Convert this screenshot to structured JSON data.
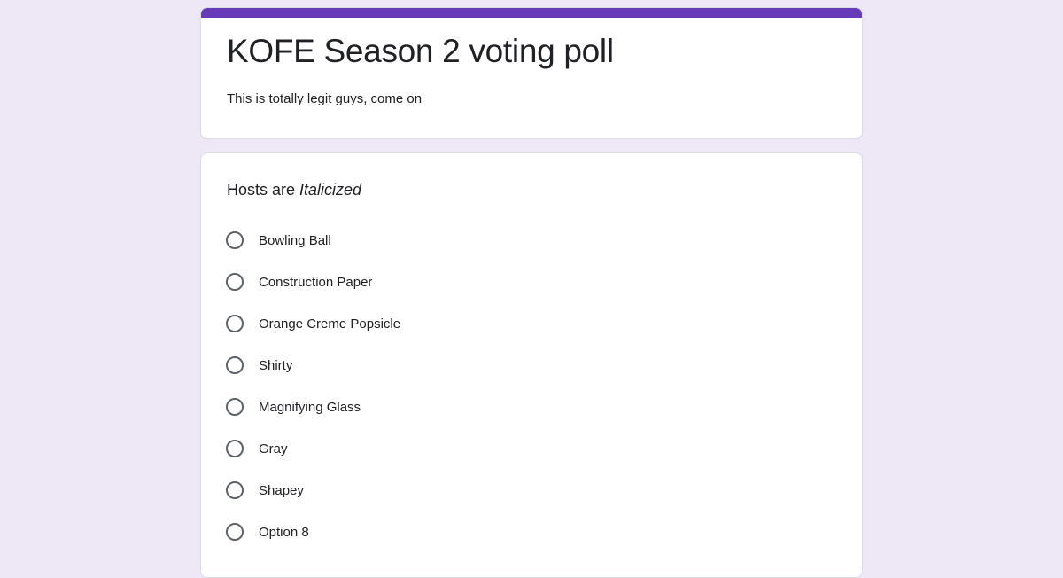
{
  "form": {
    "title": "KOFE Season 2 voting poll",
    "description": "This is totally legit guys, come on",
    "accent_color": "#673ab7",
    "background_color": "#ede7f6"
  },
  "question": {
    "text_prefix": "Hosts are ",
    "text_italic": "Italicized",
    "options": [
      {
        "label": "Bowling Ball",
        "selected": false
      },
      {
        "label": "Construction Paper",
        "selected": false
      },
      {
        "label": "Orange Creme Popsicle",
        "selected": false
      },
      {
        "label": "Shirty",
        "selected": false
      },
      {
        "label": "Magnifying Glass",
        "selected": false
      },
      {
        "label": "Gray",
        "selected": false
      },
      {
        "label": "Shapey",
        "selected": false
      },
      {
        "label": "Option 8",
        "selected": false
      }
    ]
  }
}
